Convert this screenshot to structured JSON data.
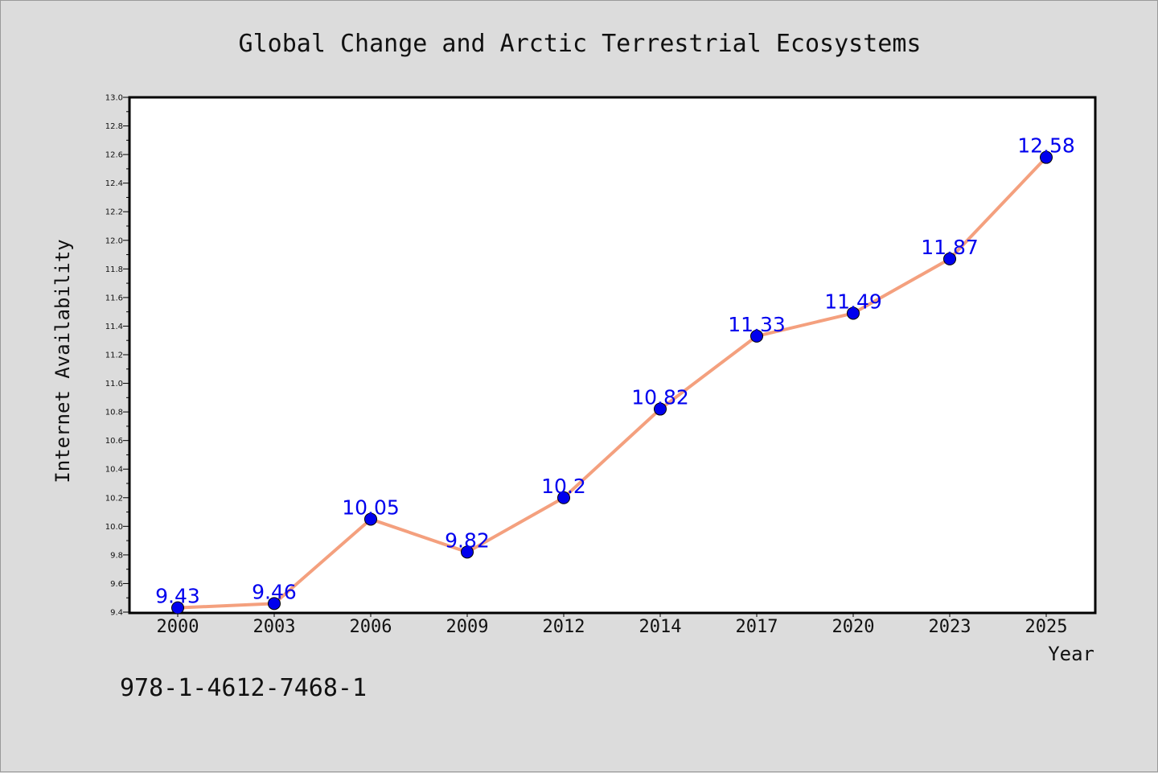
{
  "chart_data": {
    "type": "line",
    "title": "Global Change and Arctic Terrestrial Ecosystems",
    "xlabel": "Year",
    "ylabel": "Internet Availability",
    "categories": [
      "2000",
      "2003",
      "2006",
      "2009",
      "2012",
      "2014",
      "2017",
      "2020",
      "2023",
      "2025"
    ],
    "series": [
      {
        "values": [
          9.43,
          9.46,
          10.05,
          9.82,
          10.2,
          10.82,
          11.33,
          11.49,
          11.87,
          12.58
        ],
        "labels": [
          "9.43",
          "9.46",
          "10.05",
          "9.82",
          "10.2",
          "10.82",
          "11.33",
          "11.49",
          "11.87",
          "12.58"
        ],
        "line_color": "#f4a07e",
        "marker_color": "#0000ee",
        "label_color": "#0000ee"
      }
    ],
    "ylim": [
      9.4,
      13.0
    ],
    "yticks": [
      "9.4",
      "9.6",
      "9.8",
      "10.0",
      "10.2",
      "10.4",
      "10.6",
      "10.8",
      "11.0",
      "11.2",
      "11.4",
      "11.6",
      "11.8",
      "12.0",
      "12.2",
      "12.4",
      "12.6",
      "12.8",
      "13.0"
    ],
    "grid": false,
    "legend": "none"
  },
  "footer": {
    "text": "978-1-4612-7468-1"
  }
}
